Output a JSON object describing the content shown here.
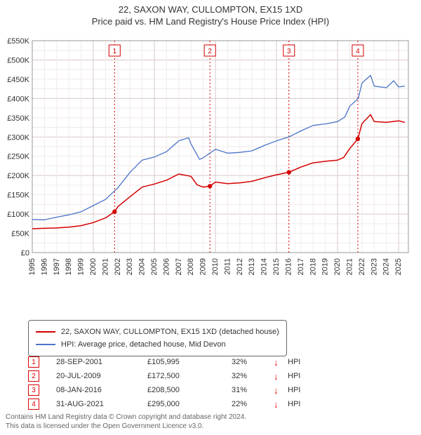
{
  "title_line1": "22, SAXON WAY, CULLOMPTON, EX15 1XD",
  "title_line2": "Price paid vs. HM Land Registry's House Price Index (HPI)",
  "chart": {
    "type": "line",
    "background_color": "#ffffff",
    "grid_minor_color": "#f2eaea",
    "grid_major_color": "#d9c8c8",
    "x": {
      "min": 1995,
      "max": 2025.8,
      "labels": [
        "1995",
        "1996",
        "1997",
        "1998",
        "1999",
        "2000",
        "2001",
        "2002",
        "2003",
        "2004",
        "2005",
        "2006",
        "2007",
        "2008",
        "2009",
        "2010",
        "2011",
        "2012",
        "2013",
        "2014",
        "2015",
        "2016",
        "2017",
        "2018",
        "2019",
        "2020",
        "2021",
        "2022",
        "2023",
        "2024",
        "2025"
      ],
      "label_rotate": -90,
      "fontsize": 11
    },
    "y": {
      "min": 0,
      "max": 550000,
      "step": 50000,
      "labels": [
        "£0",
        "£50K",
        "£100K",
        "£150K",
        "£200K",
        "£250K",
        "£300K",
        "£350K",
        "£400K",
        "£450K",
        "£500K",
        "£550K"
      ],
      "fontsize": 11
    },
    "series": [
      {
        "name": "property",
        "color": "#d40000",
        "width": 1.5,
        "points": [
          [
            1995,
            62000
          ],
          [
            1996,
            63000
          ],
          [
            1997,
            64000
          ],
          [
            1998,
            66000
          ],
          [
            1999,
            70000
          ],
          [
            2000,
            78000
          ],
          [
            2001,
            90000
          ],
          [
            2001.74,
            105995
          ],
          [
            2002,
            119000
          ],
          [
            2003,
            145000
          ],
          [
            2004,
            170000
          ],
          [
            2005,
            178000
          ],
          [
            2006,
            188000
          ],
          [
            2007,
            204000
          ],
          [
            2008,
            198000
          ],
          [
            2008.5,
            176000
          ],
          [
            2009,
            170000
          ],
          [
            2009.55,
            172500
          ],
          [
            2010,
            183000
          ],
          [
            2011,
            179000
          ],
          [
            2012,
            181000
          ],
          [
            2013,
            185000
          ],
          [
            2014,
            194000
          ],
          [
            2015,
            202000
          ],
          [
            2016.02,
            208500
          ],
          [
            2017,
            222000
          ],
          [
            2018,
            233000
          ],
          [
            2019,
            237000
          ],
          [
            2020,
            240000
          ],
          [
            2020.5,
            247000
          ],
          [
            2021,
            270000
          ],
          [
            2021.66,
            295000
          ],
          [
            2022,
            335000
          ],
          [
            2022.7,
            358000
          ],
          [
            2023,
            340000
          ],
          [
            2024,
            338000
          ],
          [
            2025,
            342000
          ],
          [
            2025.5,
            338000
          ]
        ]
      },
      {
        "name": "hpi",
        "color": "#4a74c9",
        "width": 1.3,
        "points": [
          [
            1995,
            86000
          ],
          [
            1996,
            85000
          ],
          [
            1997,
            92000
          ],
          [
            1998,
            98000
          ],
          [
            1999,
            106000
          ],
          [
            2000,
            122000
          ],
          [
            2001,
            138000
          ],
          [
            2002,
            168000
          ],
          [
            2003,
            208000
          ],
          [
            2004,
            240000
          ],
          [
            2005,
            248000
          ],
          [
            2006,
            262000
          ],
          [
            2007,
            290000
          ],
          [
            2007.8,
            298000
          ],
          [
            2008,
            282000
          ],
          [
            2008.7,
            242000
          ],
          [
            2009,
            246000
          ],
          [
            2010,
            268000
          ],
          [
            2011,
            258000
          ],
          [
            2012,
            260000
          ],
          [
            2013,
            264000
          ],
          [
            2014,
            278000
          ],
          [
            2015,
            290000
          ],
          [
            2016,
            300000
          ],
          [
            2017,
            316000
          ],
          [
            2018,
            330000
          ],
          [
            2019,
            334000
          ],
          [
            2020,
            340000
          ],
          [
            2020.6,
            352000
          ],
          [
            2021,
            380000
          ],
          [
            2021.7,
            400000
          ],
          [
            2022,
            440000
          ],
          [
            2022.7,
            460000
          ],
          [
            2023,
            432000
          ],
          [
            2024,
            428000
          ],
          [
            2024.6,
            446000
          ],
          [
            2025,
            430000
          ],
          [
            2025.5,
            432000
          ]
        ]
      }
    ],
    "markers": [
      {
        "n": "1",
        "x": 2001.74,
        "y": 105995
      },
      {
        "n": "2",
        "x": 2009.55,
        "y": 172500
      },
      {
        "n": "3",
        "x": 2016.02,
        "y": 208500
      },
      {
        "n": "4",
        "x": 2021.66,
        "y": 295000
      }
    ],
    "vlines_color": "#d40000",
    "marker_box_border": "#d40000"
  },
  "legend": {
    "rows": [
      {
        "color": "#d40000",
        "label": "22, SAXON WAY, CULLOMPTON, EX15 1XD (detached house)"
      },
      {
        "color": "#4a74c9",
        "label": "HPI: Average price, detached house, Mid Devon"
      }
    ]
  },
  "marker_table": [
    {
      "n": "1",
      "date": "28-SEP-2001",
      "price": "£105,995",
      "diff": "32%",
      "arrow": "↓",
      "vs": "HPI"
    },
    {
      "n": "2",
      "date": "20-JUL-2009",
      "price": "£172,500",
      "diff": "32%",
      "arrow": "↓",
      "vs": "HPI"
    },
    {
      "n": "3",
      "date": "08-JAN-2016",
      "price": "£208,500",
      "diff": "31%",
      "arrow": "↓",
      "vs": "HPI"
    },
    {
      "n": "4",
      "date": "31-AUG-2021",
      "price": "£295,000",
      "diff": "22%",
      "arrow": "↓",
      "vs": "HPI"
    }
  ],
  "footer_line1": "Contains HM Land Registry data © Crown copyright and database right 2024.",
  "footer_line2": "This data is licensed under the Open Government Licence v3.0."
}
